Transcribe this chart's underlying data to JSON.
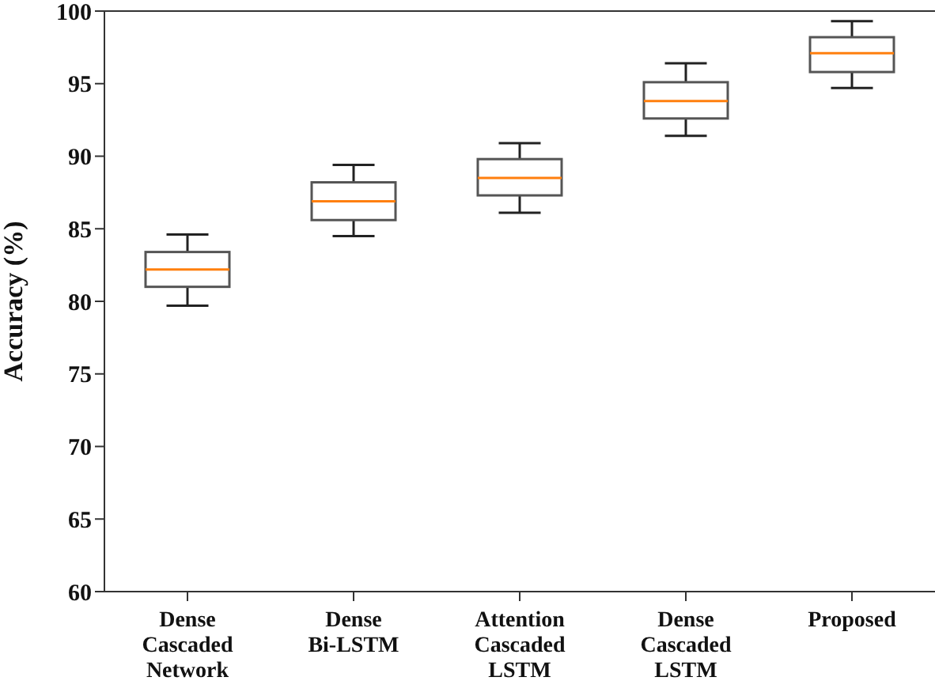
{
  "chart_data": {
    "type": "box",
    "ylabel": "Accuracy (%)",
    "categories": [
      "Dense Cascaded Network",
      "Dense Bi-LSTM",
      "Attention Cascaded LSTM",
      "Dense Cascaded LSTM",
      "Proposed"
    ],
    "boxes": [
      {
        "low": 79.7,
        "q1": 81.0,
        "median": 82.2,
        "q3": 83.4,
        "high": 84.6
      },
      {
        "low": 84.5,
        "q1": 85.6,
        "median": 86.9,
        "q3": 88.2,
        "high": 89.4
      },
      {
        "low": 86.1,
        "q1": 87.3,
        "median": 88.5,
        "q3": 89.8,
        "high": 90.9
      },
      {
        "low": 91.4,
        "q1": 92.6,
        "median": 93.8,
        "q3": 95.1,
        "high": 96.4
      },
      {
        "low": 94.7,
        "q1": 95.8,
        "median": 97.1,
        "q3": 98.2,
        "high": 99.3
      }
    ],
    "color": "#555555",
    "ylim": [
      60,
      100
    ],
    "yticks": [
      60,
      65,
      70,
      75,
      80,
      85,
      90,
      95,
      100
    ]
  }
}
